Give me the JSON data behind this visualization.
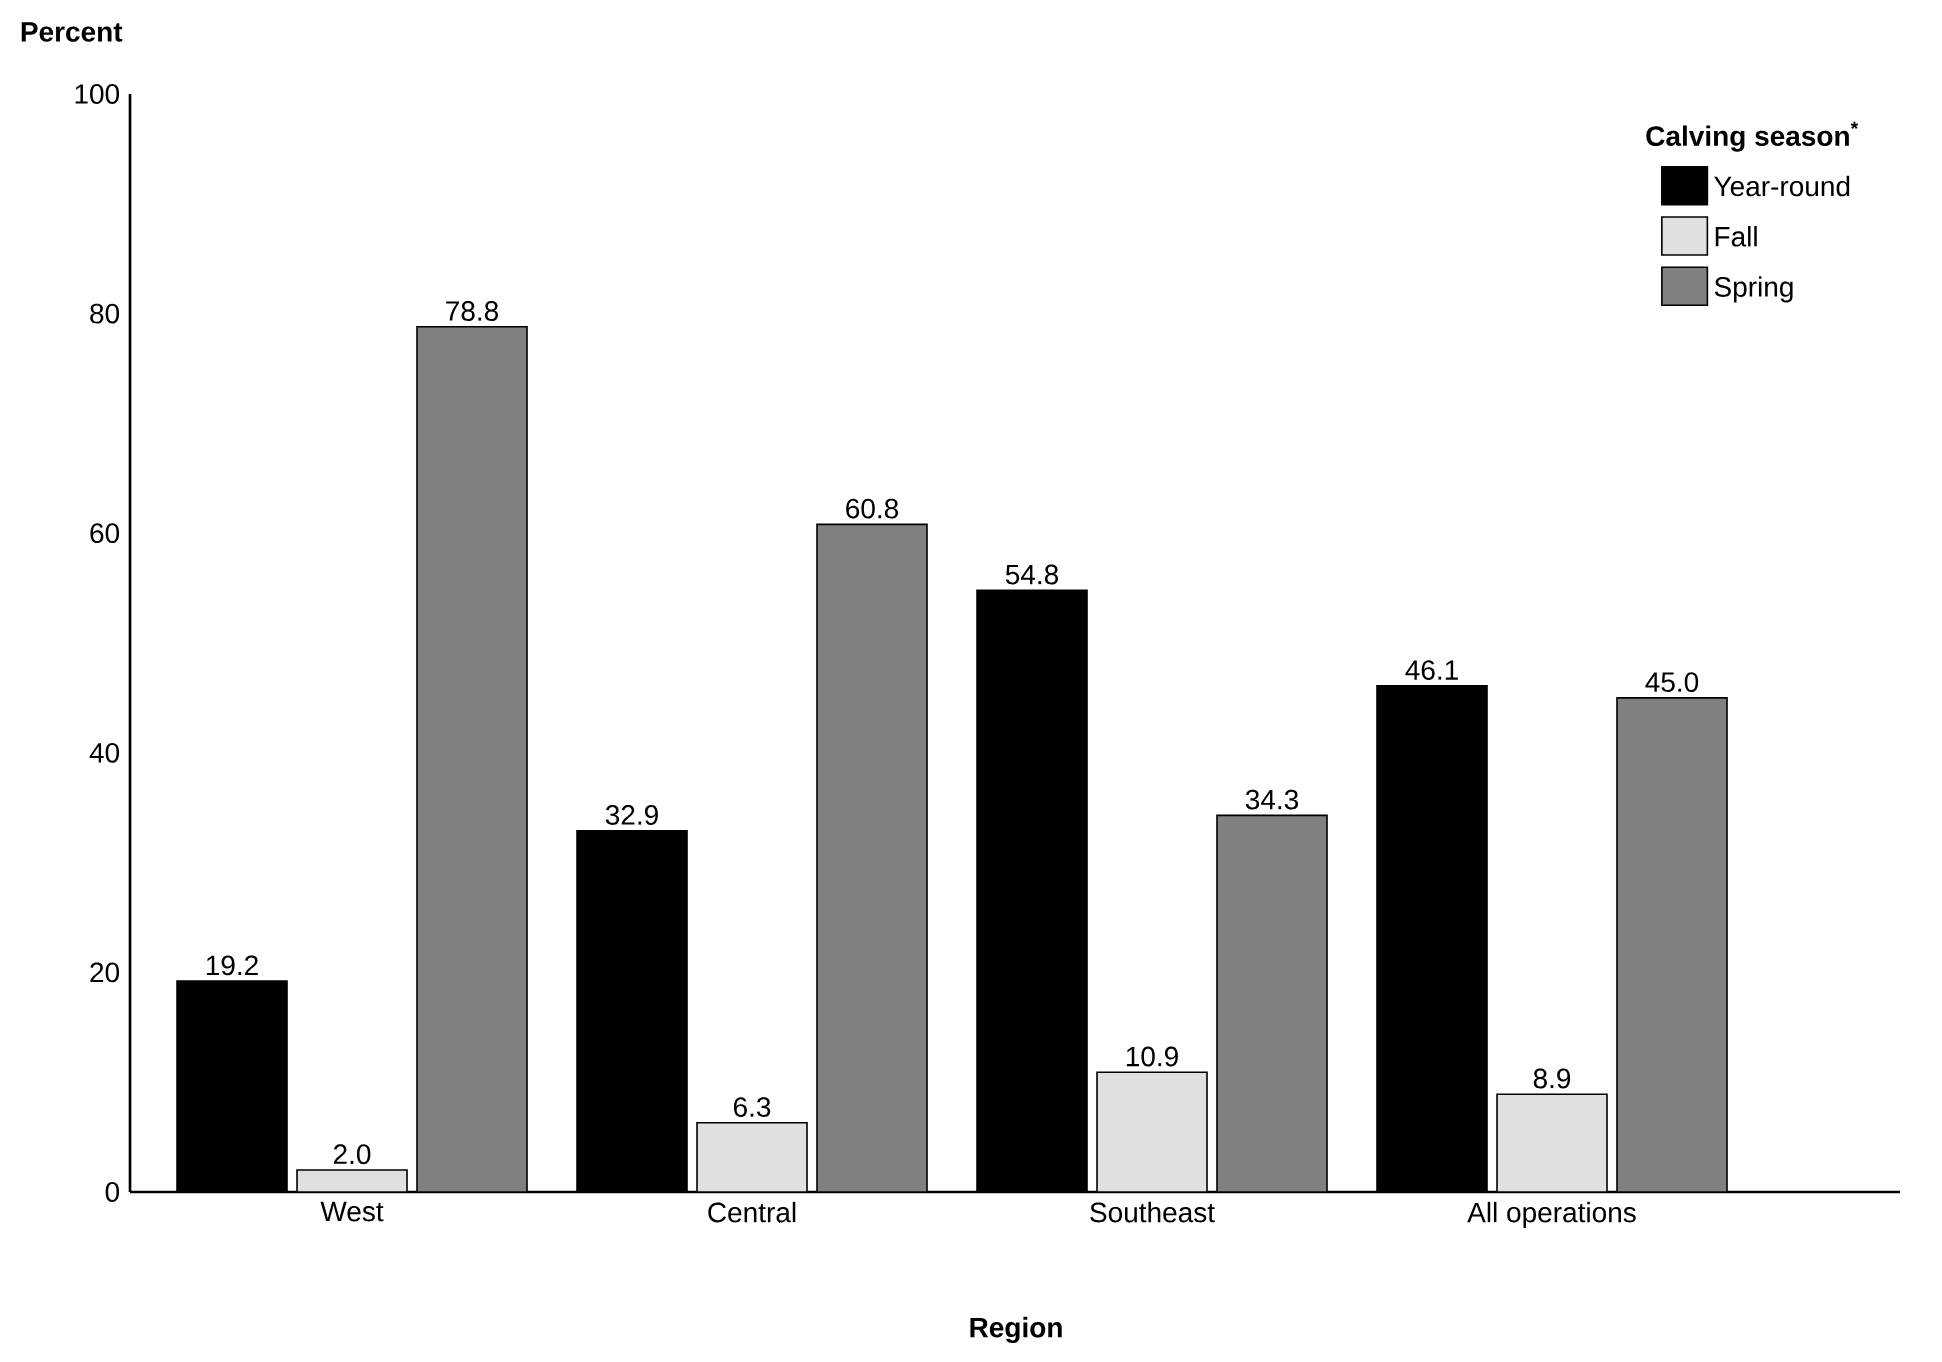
{
  "chart_data": {
    "type": "bar",
    "xlabel": "Region",
    "ylabel": "Percent",
    "legend_title": "Calving season$^{*}$",
    "legend": "top right",
    "categories": [
      "West",
      "Central",
      "Southeast",
      "All operations"
    ],
    "series": [
      {
        "name": "Year-round",
        "color": "#000000",
        "values": [
          19.2,
          32.9,
          54.8,
          46.1
        ],
        "value_labels": [
          "19.2",
          "32.9",
          "54.8",
          "46.1"
        ]
      },
      {
        "name": "Fall",
        "color": "#e0e0e0",
        "values": [
          2.0,
          6.3,
          10.9,
          8.9
        ],
        "value_labels": [
          "2.0",
          "6.3",
          "10.9",
          "8.9"
        ]
      },
      {
        "name": "Spring",
        "color": "#808080",
        "values": [
          78.8,
          60.8,
          34.3,
          45.0
        ],
        "value_labels": [
          "78.8",
          "60.8",
          "34.3",
          "45.0"
        ]
      }
    ],
    "ylim": [
      0,
      100
    ],
    "yticks": [
      0,
      20,
      40,
      60,
      80,
      100
    ]
  }
}
